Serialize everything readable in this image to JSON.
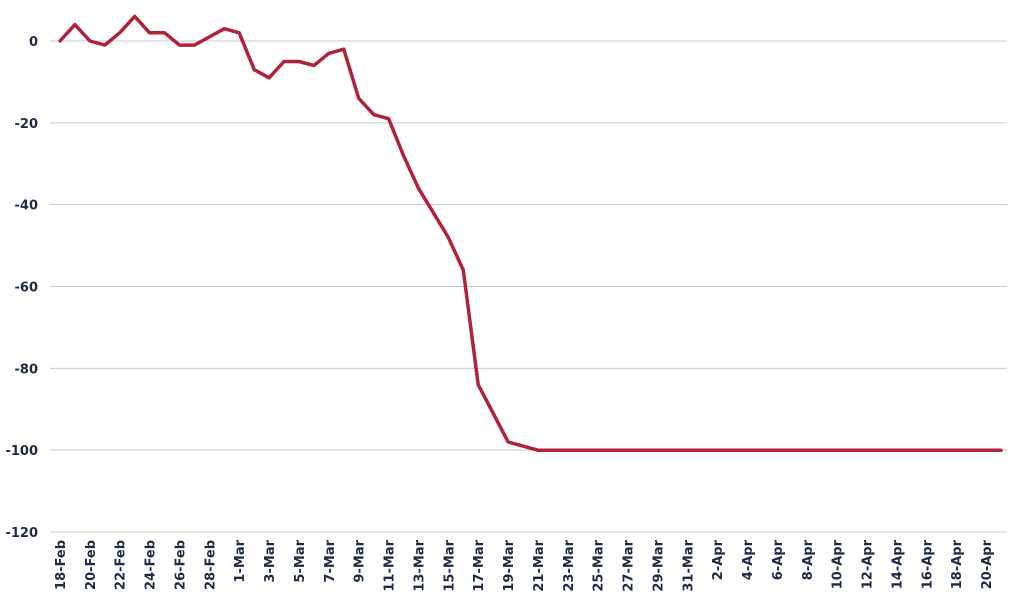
{
  "chart_data": {
    "type": "line",
    "title": "",
    "xlabel": "",
    "ylabel": "",
    "ylim": [
      -120,
      0
    ],
    "y_ticks": [
      0,
      -20,
      -40,
      -60,
      -80,
      -100,
      -120
    ],
    "grid": "horizontal",
    "legend": "none",
    "series_color": "#b0223a",
    "x_tick_labels": [
      "18-Feb",
      "20-Feb",
      "22-Feb",
      "24-Feb",
      "26-Feb",
      "28-Feb",
      "1-Mar",
      "3-Mar",
      "5-Mar",
      "7-Mar",
      "9-Mar",
      "11-Mar",
      "13-Mar",
      "15-Mar",
      "17-Mar",
      "19-Mar",
      "21-Mar",
      "23-Mar",
      "25-Mar",
      "27-Mar",
      "29-Mar",
      "31-Mar",
      "2-Apr",
      "4-Apr",
      "6-Apr",
      "8-Apr",
      "10-Apr",
      "12-Apr",
      "14-Apr",
      "16-Apr",
      "18-Apr",
      "20-Apr"
    ],
    "x": [
      "18-Feb",
      "19-Feb",
      "20-Feb",
      "21-Feb",
      "22-Feb",
      "23-Feb",
      "24-Feb",
      "25-Feb",
      "26-Feb",
      "27-Feb",
      "28-Feb",
      "29-Feb",
      "1-Mar",
      "2-Mar",
      "3-Mar",
      "4-Mar",
      "5-Mar",
      "6-Mar",
      "7-Mar",
      "8-Mar",
      "9-Mar",
      "10-Mar",
      "11-Mar",
      "12-Mar",
      "13-Mar",
      "14-Mar",
      "15-Mar",
      "16-Mar",
      "17-Mar",
      "18-Mar",
      "19-Mar",
      "20-Mar",
      "21-Mar",
      "22-Mar",
      "23-Mar",
      "24-Mar",
      "25-Mar",
      "26-Mar",
      "27-Mar",
      "28-Mar",
      "29-Mar",
      "30-Mar",
      "31-Mar",
      "1-Apr",
      "2-Apr",
      "3-Apr",
      "4-Apr",
      "5-Apr",
      "6-Apr",
      "7-Apr",
      "8-Apr",
      "9-Apr",
      "10-Apr",
      "11-Apr",
      "12-Apr",
      "13-Apr",
      "14-Apr",
      "15-Apr",
      "16-Apr",
      "17-Apr",
      "18-Apr",
      "19-Apr",
      "20-Apr",
      "21-Apr"
    ],
    "series": [
      {
        "values": [
          0,
          4,
          0,
          -1,
          2,
          6,
          2,
          2,
          -1,
          -1,
          1,
          3,
          2,
          -7,
          -9,
          -5,
          -5,
          -6,
          -3,
          -2,
          -14,
          -18,
          -19,
          -28,
          -36,
          -42,
          -48,
          -56,
          -84,
          -91,
          -98,
          -99,
          -100,
          -100,
          -100,
          -100,
          -100,
          -100,
          -100,
          -100,
          -100,
          -100,
          -100,
          -100,
          -100,
          -100,
          -100,
          -100,
          -100,
          -100,
          -100,
          -100,
          -100,
          -100,
          -100,
          -100,
          -100,
          -100,
          -100,
          -100,
          -100,
          -100,
          -100,
          -100
        ]
      }
    ]
  }
}
